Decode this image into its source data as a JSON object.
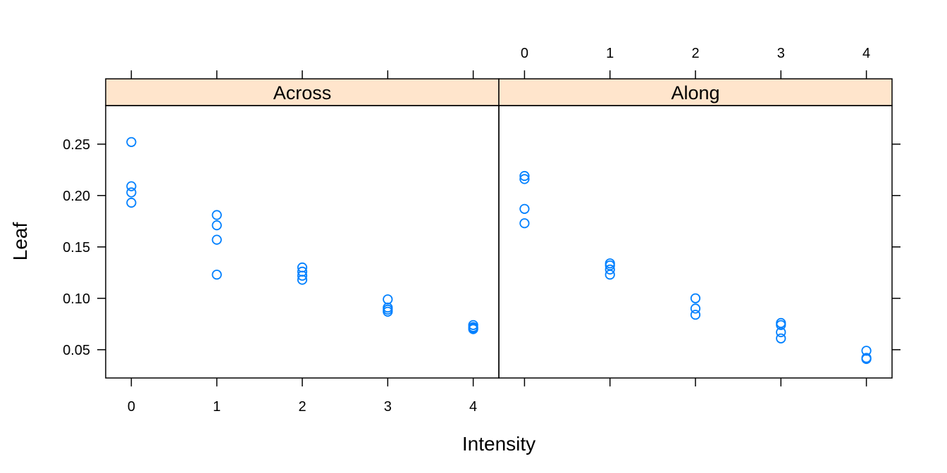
{
  "chart_data": {
    "type": "scatter",
    "xlabel": "Intensity",
    "ylabel": "Leaf",
    "xlim": [
      -0.3,
      4.3
    ],
    "ylim": [
      0.0225,
      0.2875
    ],
    "x_ticks": [
      0,
      1,
      2,
      3,
      4
    ],
    "y_ticks": [
      0.05,
      0.1,
      0.15,
      0.2,
      0.25
    ],
    "y_tick_labels": [
      "0.05",
      "0.10",
      "0.15",
      "0.20",
      "0.25"
    ],
    "point_color": "#0080FF",
    "strip_color": "#FFE5CC",
    "panels": [
      {
        "name": "Across",
        "points": [
          {
            "x": 0,
            "y": 0.252
          },
          {
            "x": 0,
            "y": 0.209
          },
          {
            "x": 0,
            "y": 0.203
          },
          {
            "x": 0,
            "y": 0.193
          },
          {
            "x": 1,
            "y": 0.181
          },
          {
            "x": 1,
            "y": 0.171
          },
          {
            "x": 1,
            "y": 0.157
          },
          {
            "x": 1,
            "y": 0.123
          },
          {
            "x": 2,
            "y": 0.13
          },
          {
            "x": 2,
            "y": 0.126
          },
          {
            "x": 2,
            "y": 0.122
          },
          {
            "x": 2,
            "y": 0.118
          },
          {
            "x": 3,
            "y": 0.099
          },
          {
            "x": 3,
            "y": 0.091
          },
          {
            "x": 3,
            "y": 0.089
          },
          {
            "x": 3,
            "y": 0.087
          },
          {
            "x": 4,
            "y": 0.074
          },
          {
            "x": 4,
            "y": 0.072
          },
          {
            "x": 4,
            "y": 0.071
          },
          {
            "x": 4,
            "y": 0.07
          }
        ]
      },
      {
        "name": "Along",
        "points": [
          {
            "x": 0,
            "y": 0.219
          },
          {
            "x": 0,
            "y": 0.216
          },
          {
            "x": 0,
            "y": 0.187
          },
          {
            "x": 0,
            "y": 0.173
          },
          {
            "x": 1,
            "y": 0.134
          },
          {
            "x": 1,
            "y": 0.132
          },
          {
            "x": 1,
            "y": 0.128
          },
          {
            "x": 1,
            "y": 0.123
          },
          {
            "x": 2,
            "y": 0.1
          },
          {
            "x": 2,
            "y": 0.09
          },
          {
            "x": 2,
            "y": 0.084
          },
          {
            "x": 3,
            "y": 0.076
          },
          {
            "x": 3,
            "y": 0.074
          },
          {
            "x": 3,
            "y": 0.067
          },
          {
            "x": 3,
            "y": 0.061
          },
          {
            "x": 4,
            "y": 0.049
          },
          {
            "x": 4,
            "y": 0.042
          },
          {
            "x": 4,
            "y": 0.041
          }
        ]
      }
    ]
  }
}
